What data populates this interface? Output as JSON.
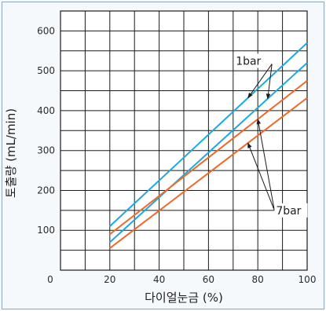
{
  "chart_data": {
    "type": "line",
    "title": "",
    "xlabel": "다이얼눈금 (%)",
    "ylabel": "토출량 (mL/min)",
    "xlim": [
      0,
      100
    ],
    "ylim": [
      0,
      650
    ],
    "x_ticks": [
      0,
      20,
      40,
      60,
      80,
      100
    ],
    "y_ticks": [
      100,
      200,
      300,
      400,
      500,
      600
    ],
    "grid": true,
    "series": [
      {
        "name": "",
        "color": "#1ea8e0",
        "x": [
          20,
          100
        ],
        "y": [
          110,
          570
        ]
      },
      {
        "name": "",
        "color": "#1ea8e0",
        "x": [
          20,
          100
        ],
        "y": [
          70,
          520
        ]
      },
      {
        "name": "",
        "color": "#ef6a2b",
        "x": [
          20,
          100
        ],
        "y": [
          90,
          475
        ]
      },
      {
        "name": "",
        "color": "#ef6a2b",
        "x": [
          20,
          100
        ],
        "y": [
          55,
          432
        ]
      }
    ],
    "annotations": [
      {
        "text": "1bar",
        "x": 80,
        "y": 525,
        "targets": [
          0,
          1
        ]
      },
      {
        "text": "7bar",
        "x": 88,
        "y": 150,
        "targets": [
          2,
          3
        ]
      }
    ]
  }
}
